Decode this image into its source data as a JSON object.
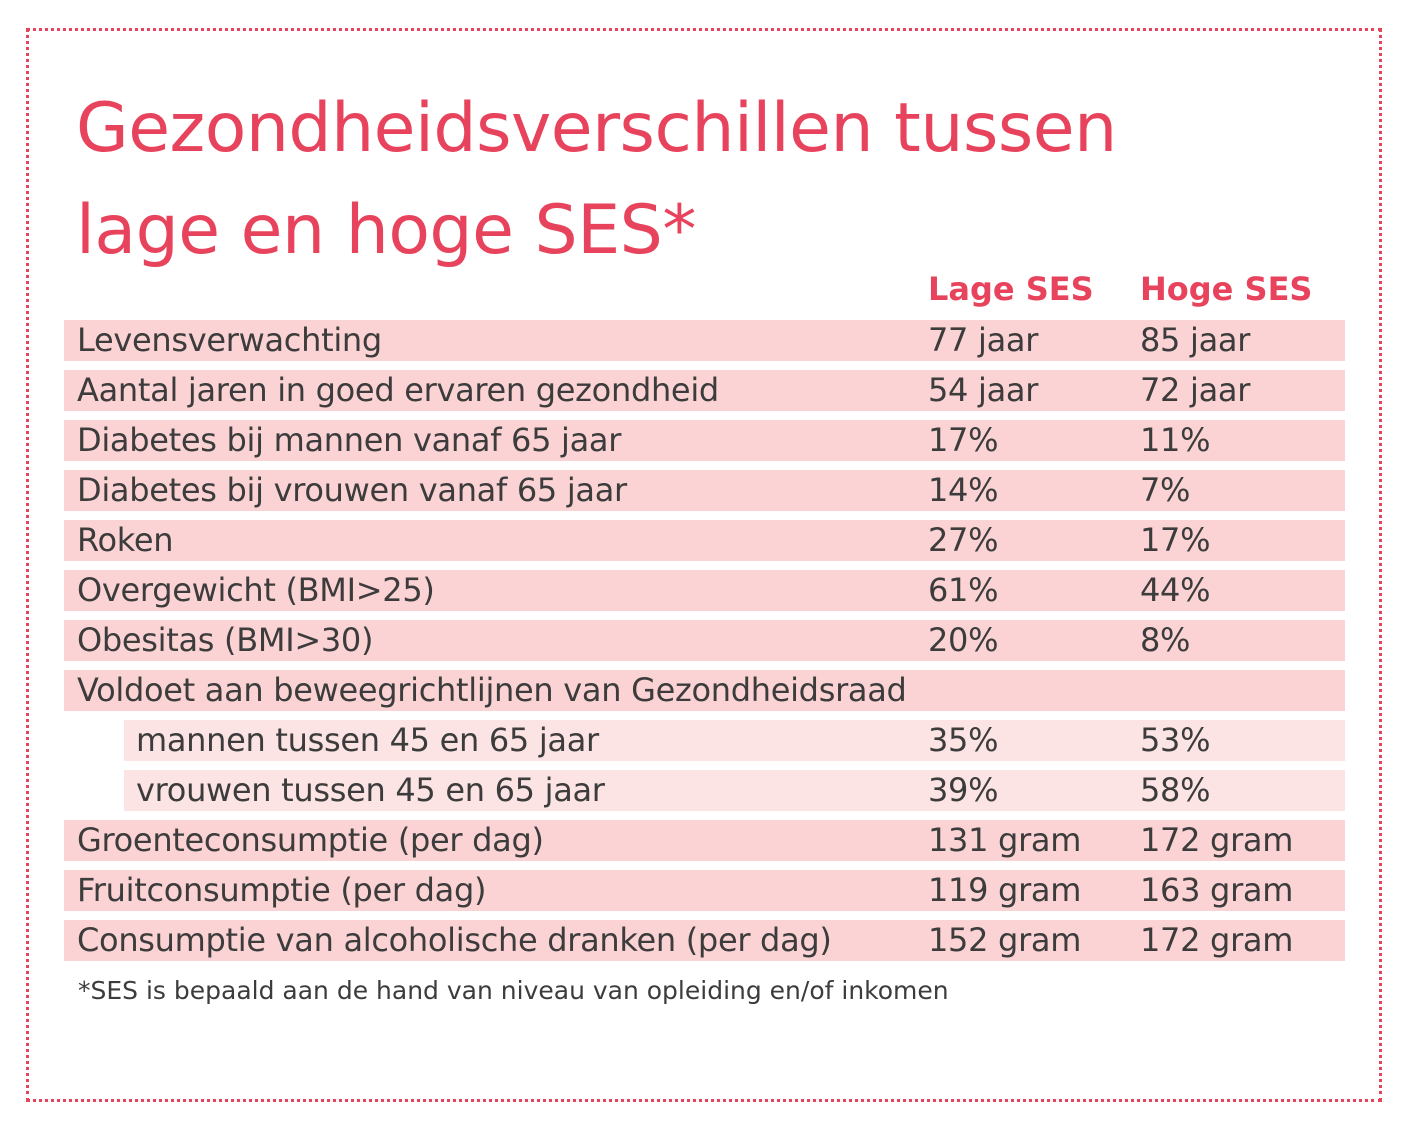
{
  "title": {
    "line1": "Gezondheidsverschillen tussen",
    "line2": "lage en hoge SES*"
  },
  "columns": {
    "lage": "Lage SES",
    "hoge": "Hoge SES"
  },
  "rows": [
    {
      "label": "Levensverwachting",
      "lage": "77 jaar",
      "hoge": "85 jaar"
    },
    {
      "label": "Aantal jaren in goed ervaren gezondheid",
      "lage": "54 jaar",
      "hoge": "72 jaar"
    },
    {
      "label": "Diabetes bij mannen vanaf 65 jaar",
      "lage": "17%",
      "hoge": "11%"
    },
    {
      "label": "Diabetes bij vrouwen vanaf 65 jaar",
      "lage": "14%",
      "hoge": "7%"
    },
    {
      "label": "Roken",
      "lage": "27%",
      "hoge": "17%"
    },
    {
      "label": "Overgewicht (BMI>25)",
      "lage": "61%",
      "hoge": "44%"
    },
    {
      "label": "Obesitas (BMI>30)",
      "lage": "20%",
      "hoge": "8%"
    },
    {
      "label": "Voldoet aan beweegrichtlijnen van Gezondheidsraad",
      "lage": "",
      "hoge": ""
    },
    {
      "label": "mannen tussen 45 en 65 jaar",
      "lage": "35%",
      "hoge": "53%"
    },
    {
      "label": "vrouwen tussen 45 en 65 jaar",
      "lage": "39%",
      "hoge": "58%"
    },
    {
      "label": "Groenteconsumptie (per dag)",
      "lage": "131 gram",
      "hoge": "172 gram"
    },
    {
      "label": "Fruitconsumptie (per dag)",
      "lage": "119 gram",
      "hoge": "163 gram"
    },
    {
      "label": "Consumptie van alcoholische dranken (per dag)",
      "lage": "152 gram",
      "hoge": "172 gram"
    }
  ],
  "footnote": "*SES is bepaald aan de hand van niveau van opleiding en/of inkomen",
  "colors": {
    "accent": "#e8435c",
    "row_fill": "#fcd3d4",
    "sub_row_fill": "#fde4e4",
    "text": "#3c3c3c"
  }
}
